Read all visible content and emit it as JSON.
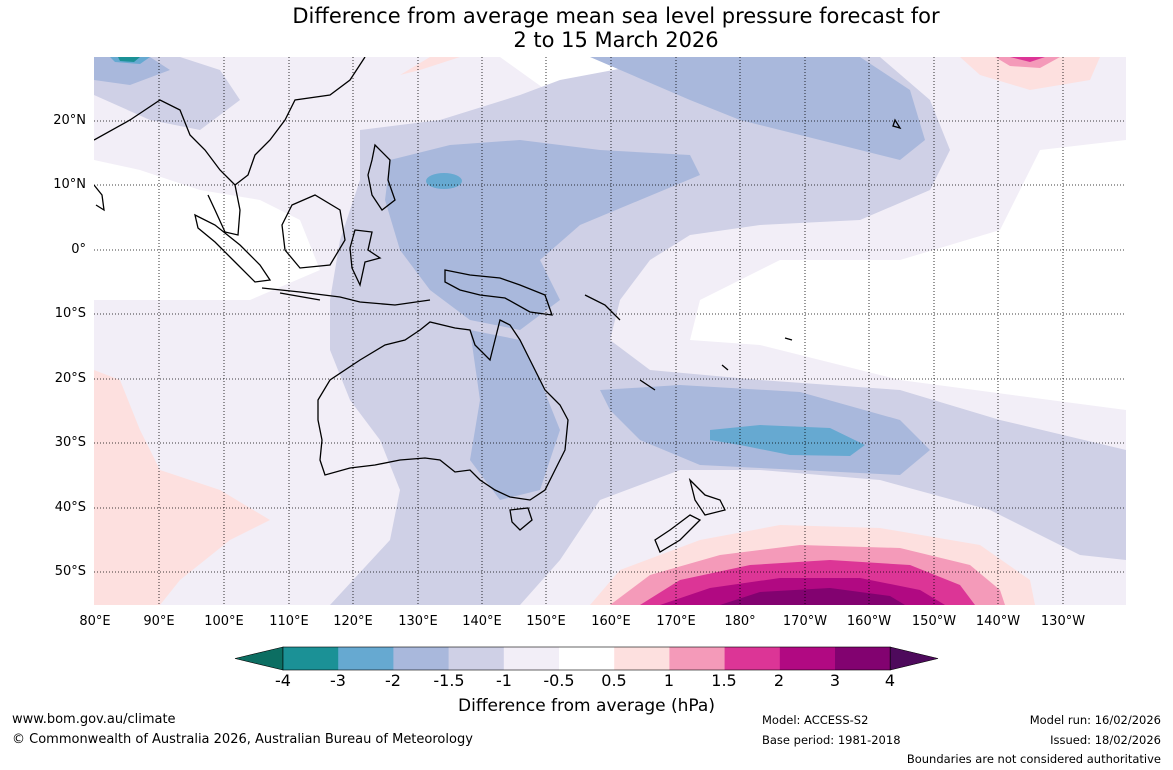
{
  "title": {
    "line1": "Difference from average mean sea level pressure forecast for",
    "line2": "2 to 15 March 2026"
  },
  "map": {
    "lat_labels": [
      "20°N",
      "10°N",
      "0°",
      "10°S",
      "20°S",
      "30°S",
      "40°S",
      "50°S"
    ],
    "lon_labels": [
      "80°E",
      "90°E",
      "100°E",
      "110°E",
      "120°E",
      "130°E",
      "140°E",
      "150°E",
      "160°E",
      "170°E",
      "180°",
      "170°W",
      "160°W",
      "150°W",
      "140°W",
      "130°W"
    ]
  },
  "colorbar": {
    "labels": [
      "-4",
      "-3",
      "-2",
      "-1.5",
      "-1",
      "-0.5",
      "0.5",
      "1",
      "1.5",
      "2",
      "3",
      "4"
    ],
    "colors": [
      "#0c6e62",
      "#1b9196",
      "#66a9d1",
      "#a9b8dc",
      "#cfd0e6",
      "#f2eef7",
      "#ffffff",
      "#fde0df",
      "#f49ab9",
      "#dc3596",
      "#b10982",
      "#820270",
      "#4e0a5c"
    ],
    "title": "Difference from average (hPa)"
  },
  "footer": {
    "website": "www.bom.gov.au/climate",
    "copyright": "© Commonwealth of Australia 2026, Australian Bureau of Meteorology",
    "model": "Model: ACCESS-S2",
    "base_period": "Base period: 1981-2018",
    "model_run": "Model run: 16/02/2026",
    "issued": "Issued: 18/02/2026",
    "disclaimer": "Boundaries are not considered authoritative"
  }
}
